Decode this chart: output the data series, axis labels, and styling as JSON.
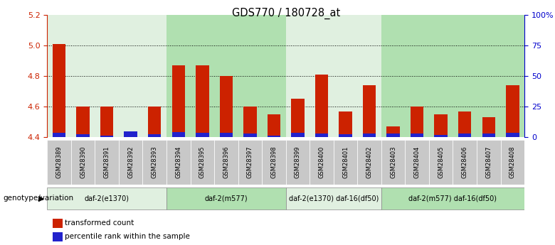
{
  "title": "GDS770 / 180728_at",
  "samples": [
    "GSM28389",
    "GSM28390",
    "GSM28391",
    "GSM28392",
    "GSM28393",
    "GSM28394",
    "GSM28395",
    "GSM28396",
    "GSM28397",
    "GSM28398",
    "GSM28399",
    "GSM28400",
    "GSM28401",
    "GSM28402",
    "GSM28403",
    "GSM28404",
    "GSM28405",
    "GSM28406",
    "GSM28407",
    "GSM28408"
  ],
  "red_values": [
    5.01,
    4.6,
    4.6,
    4.4,
    4.6,
    4.87,
    4.87,
    4.8,
    4.6,
    4.55,
    4.65,
    4.81,
    4.57,
    4.74,
    4.47,
    4.6,
    4.55,
    4.57,
    4.53,
    4.74
  ],
  "blue_values": [
    0.03,
    0.02,
    0.01,
    0.04,
    0.02,
    0.035,
    0.03,
    0.03,
    0.025,
    0.01,
    0.03,
    0.025,
    0.02,
    0.025,
    0.025,
    0.025,
    0.015,
    0.025,
    0.025,
    0.03
  ],
  "y_min": 4.4,
  "y_max": 5.2,
  "y2_ticks": [
    0,
    25,
    50,
    75,
    100
  ],
  "y2_tick_labels": [
    "0",
    "25",
    "50",
    "75",
    "100%"
  ],
  "dotted_lines": [
    4.6,
    4.8,
    5.0
  ],
  "groups": [
    {
      "label": "daf-2(e1370)",
      "start": 0,
      "end": 4,
      "color": "#e0f0e0"
    },
    {
      "label": "daf-2(m577)",
      "start": 5,
      "end": 9,
      "color": "#b0e0b0"
    },
    {
      "label": "daf-2(e1370) daf-16(df50)",
      "start": 10,
      "end": 13,
      "color": "#e0f0e0"
    },
    {
      "label": "daf-2(m577) daf-16(df50)",
      "start": 14,
      "end": 19,
      "color": "#b0e0b0"
    }
  ],
  "legend_items": [
    {
      "color": "#cc2200",
      "label": "transformed count"
    },
    {
      "color": "#2222cc",
      "label": "percentile rank within the sample"
    }
  ],
  "genotype_label": "genotype/variation",
  "bar_width": 0.55,
  "red_color": "#cc2200",
  "blue_color": "#2222cc",
  "left_axis_color": "#cc2200",
  "right_axis_color": "#0000cc",
  "gray_bg": "#c8c8c8",
  "white_bg": "#ffffff"
}
